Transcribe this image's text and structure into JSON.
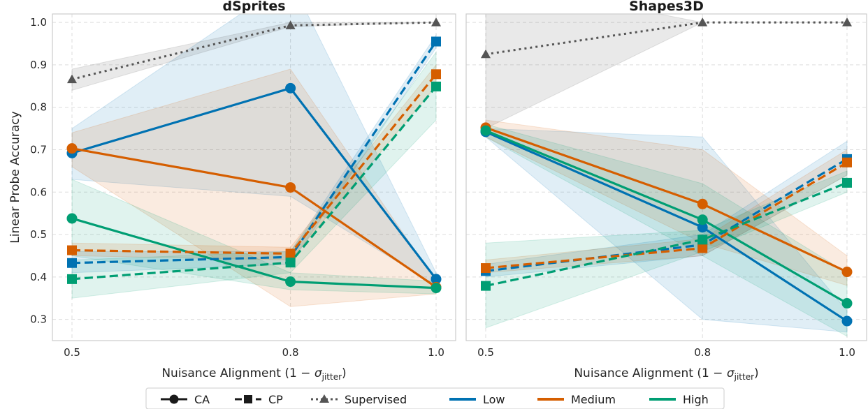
{
  "chart_data": [
    {
      "type": "line",
      "title": "dSprites",
      "xlabel": "Nuisance Alignment  (1 − σjitter)",
      "ylabel": "Linear Probe Accuracy",
      "x": [
        0.5,
        0.8,
        1.0
      ],
      "xticks": [
        "0.5",
        "0.8",
        "1.0"
      ],
      "ylim": [
        0.25,
        1.02
      ],
      "yticks": [
        "0.3",
        "0.4",
        "0.5",
        "0.6",
        "0.7",
        "0.8",
        "0.9",
        "1.0"
      ],
      "grid": true,
      "series": [
        {
          "name": "Low",
          "method": "CA",
          "values": [
            0.692,
            0.845,
            0.395
          ],
          "lower": [
            0.63,
            0.59,
            0.38
          ],
          "upper": [
            0.75,
            1.1,
            0.41
          ]
        },
        {
          "name": "Medium",
          "method": "CA",
          "values": [
            0.703,
            0.611,
            0.376
          ],
          "lower": [
            0.66,
            0.33,
            0.36
          ],
          "upper": [
            0.74,
            0.89,
            0.39
          ]
        },
        {
          "name": "High",
          "method": "CA",
          "values": [
            0.538,
            0.389,
            0.374
          ],
          "lower": [
            0.45,
            0.37,
            0.36
          ],
          "upper": [
            0.63,
            0.41,
            0.39
          ]
        },
        {
          "name": "Low",
          "method": "CP",
          "values": [
            0.433,
            0.447,
            0.955
          ],
          "lower": [
            0.41,
            0.43,
            0.94
          ],
          "upper": [
            0.46,
            0.46,
            0.97
          ]
        },
        {
          "name": "Medium",
          "method": "CP",
          "values": [
            0.463,
            0.455,
            0.878
          ],
          "lower": [
            0.45,
            0.44,
            0.85
          ],
          "upper": [
            0.48,
            0.47,
            0.9
          ]
        },
        {
          "name": "High",
          "method": "CP",
          "values": [
            0.395,
            0.434,
            0.849
          ],
          "lower": [
            0.35,
            0.41,
            0.77
          ],
          "upper": [
            0.44,
            0.46,
            0.93
          ]
        },
        {
          "name": "Supervised",
          "method": "Supervised",
          "values": [
            0.866,
            0.993,
            1.0
          ],
          "lower": [
            0.84,
            0.99,
            1.0
          ],
          "upper": [
            0.89,
            1.0,
            1.0
          ]
        }
      ]
    },
    {
      "type": "line",
      "title": "Shapes3D",
      "xlabel": "Nuisance Alignment  (1 − σjitter)",
      "ylabel": "",
      "x": [
        0.5,
        0.8,
        1.0
      ],
      "xticks": [
        "0.5",
        "0.8",
        "1.0"
      ],
      "ylim": [
        0.25,
        1.02
      ],
      "grid": true,
      "series": [
        {
          "name": "Low",
          "method": "CA",
          "values": [
            0.742,
            0.517,
            0.296
          ],
          "lower": [
            0.73,
            0.3,
            0.27
          ],
          "upper": [
            0.75,
            0.73,
            0.32
          ]
        },
        {
          "name": "Medium",
          "method": "CA",
          "values": [
            0.752,
            0.572,
            0.412
          ],
          "lower": [
            0.73,
            0.48,
            0.38
          ],
          "upper": [
            0.77,
            0.7,
            0.45
          ]
        },
        {
          "name": "High",
          "method": "CA",
          "values": [
            0.745,
            0.535,
            0.338
          ],
          "lower": [
            0.73,
            0.45,
            0.26
          ],
          "upper": [
            0.76,
            0.62,
            0.41
          ]
        },
        {
          "name": "Low",
          "method": "CP",
          "values": [
            0.414,
            0.476,
            0.678
          ],
          "lower": [
            0.4,
            0.45,
            0.64
          ],
          "upper": [
            0.43,
            0.5,
            0.72
          ]
        },
        {
          "name": "Medium",
          "method": "CP",
          "values": [
            0.421,
            0.468,
            0.67
          ],
          "lower": [
            0.41,
            0.45,
            0.64
          ],
          "upper": [
            0.44,
            0.49,
            0.7
          ]
        },
        {
          "name": "High",
          "method": "CP",
          "values": [
            0.379,
            0.488,
            0.622
          ],
          "lower": [
            0.28,
            0.46,
            0.6
          ],
          "upper": [
            0.48,
            0.51,
            0.65
          ]
        },
        {
          "name": "Supervised",
          "method": "Supervised",
          "values": [
            0.925,
            1.0,
            1.0
          ],
          "lower": [
            0.75,
            1.0,
            1.0
          ],
          "upper": [
            1.1,
            1.0,
            1.0
          ]
        }
      ]
    }
  ],
  "colors": {
    "Low": "#0072b2",
    "Medium": "#d55e00",
    "High": "#009e73",
    "Supervised": "#555555"
  },
  "legend": {
    "placement": "bottom-center",
    "entries": [
      {
        "label": "CA",
        "kind": "method",
        "style": "solid",
        "marker": "circle"
      },
      {
        "label": "CP",
        "kind": "method",
        "style": "dashed",
        "marker": "square"
      },
      {
        "label": "Supervised",
        "kind": "method",
        "style": "dotted",
        "marker": "triangle"
      },
      {
        "label": "Low",
        "kind": "level",
        "color": "#0072b2"
      },
      {
        "label": "Medium",
        "kind": "level",
        "color": "#d55e00"
      },
      {
        "label": "High",
        "kind": "level",
        "color": "#009e73"
      }
    ]
  }
}
